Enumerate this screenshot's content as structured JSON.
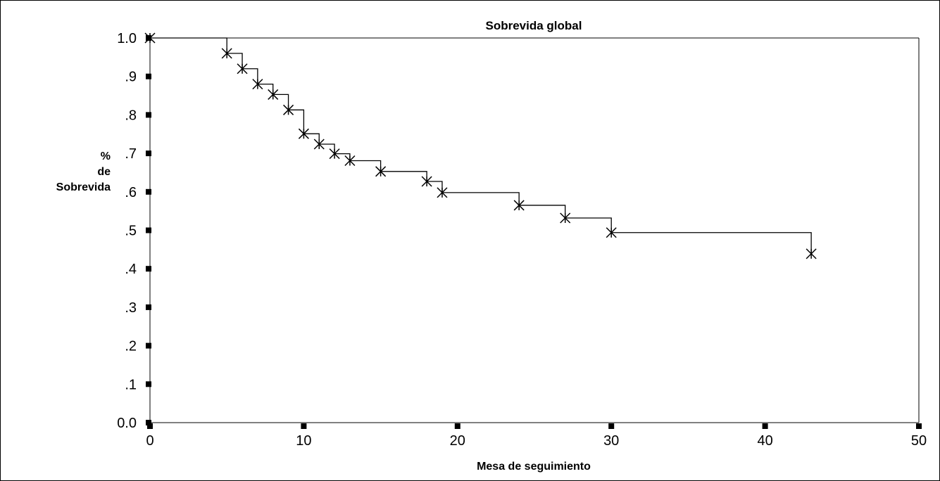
{
  "chart_data": {
    "type": "line",
    "subtype": "kaplan-meier-step",
    "title": "Sobrevida global",
    "xlabel": "Mesa de seguimiento",
    "ylabel_lines": [
      "%",
      "de",
      "Sobrevida"
    ],
    "xlim": [
      0,
      50
    ],
    "ylim": [
      0,
      1.0
    ],
    "x_ticks": [
      0,
      10,
      20,
      30,
      40,
      50
    ],
    "x_tick_labels": [
      "0",
      "10",
      "20",
      "30",
      "40",
      "50"
    ],
    "y_ticks": [
      0.0,
      0.1,
      0.2,
      0.3,
      0.4,
      0.5,
      0.6,
      0.7,
      0.8,
      0.9,
      1.0
    ],
    "y_tick_labels": [
      "0.0",
      ".1",
      ".2",
      ".3",
      ".4",
      ".5",
      ".6",
      ".7",
      ".8",
      ".9",
      "1.0"
    ],
    "grid": false,
    "line_color": "#000000",
    "series": [
      {
        "x": [
          0,
          5,
          6,
          7,
          8,
          9,
          10,
          11,
          12,
          13,
          15,
          18,
          19,
          24,
          27,
          30,
          43
        ],
        "y": [
          1.0,
          0.96,
          0.92,
          0.88,
          0.853,
          0.813,
          0.751,
          0.724,
          0.699,
          0.681,
          0.653,
          0.627,
          0.598,
          0.565,
          0.532,
          0.494,
          0.439
        ]
      }
    ]
  }
}
